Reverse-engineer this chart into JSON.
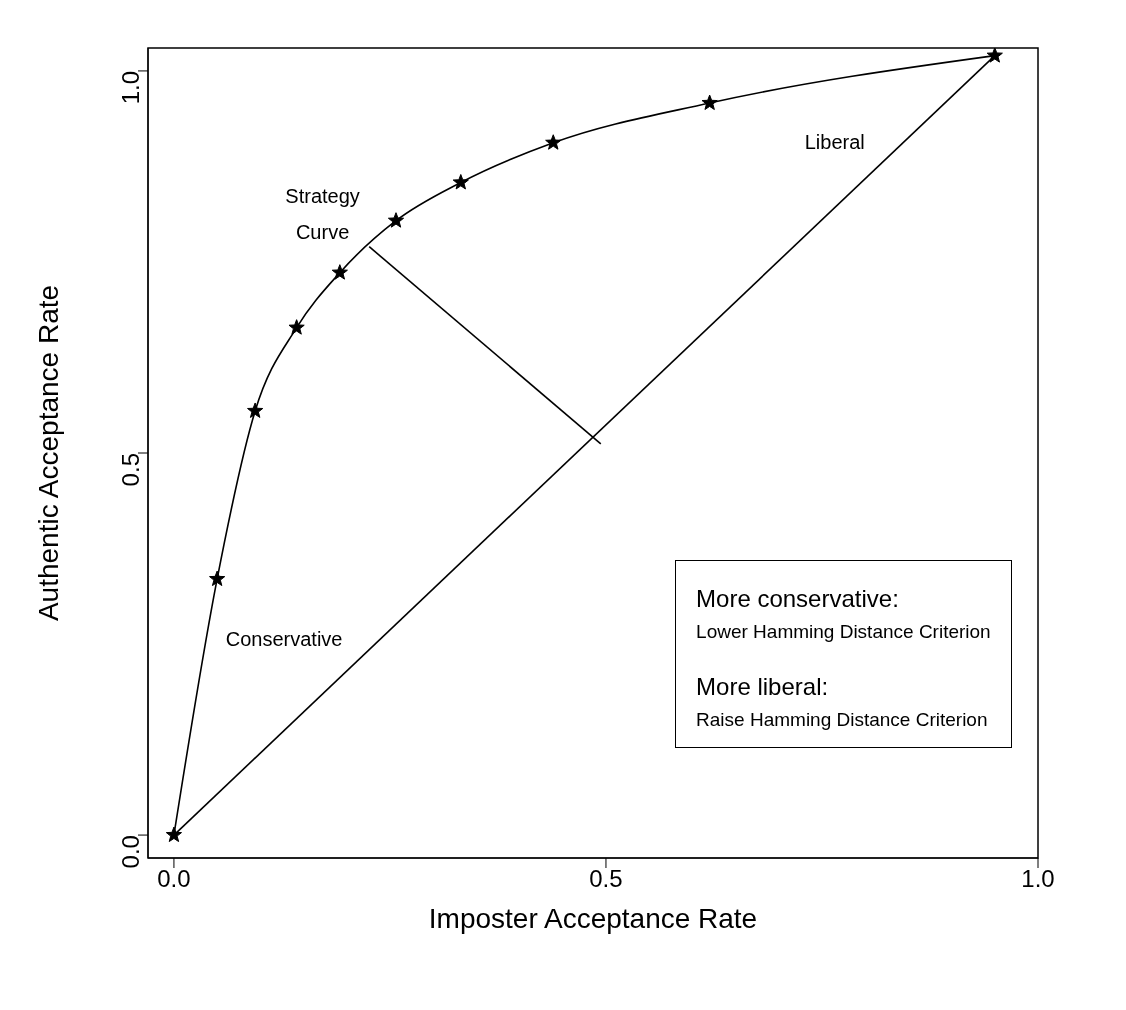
{
  "chart_data": {
    "type": "line",
    "xlabel": "Imposter Acceptance Rate",
    "ylabel": "Authentic Acceptance Rate",
    "xlim": [
      -0.03,
      1.0
    ],
    "ylim": [
      -0.03,
      1.03
    ],
    "xticks": [
      {
        "value": 0,
        "label": "0.0"
      },
      {
        "value": 0.5,
        "label": "0.5"
      },
      {
        "value": 1,
        "label": "1.0"
      }
    ],
    "yticks": [
      {
        "value": 0,
        "label": "0.0"
      },
      {
        "value": 0.5,
        "label": "0.5"
      },
      {
        "value": 1,
        "label": "1.0"
      }
    ],
    "grid": false,
    "series": [
      {
        "color": "#000000",
        "marker": "star",
        "x": [
          0,
          0.05,
          0.094,
          0.142,
          0.192,
          0.257,
          0.332,
          0.439,
          0.62,
          0.95
        ],
        "values": [
          0,
          0.335,
          0.555,
          0.664,
          0.736,
          0.804,
          0.854,
          0.906,
          0.958,
          1.02
        ]
      },
      {
        "color": "#000000",
        "marker": "none",
        "x": [
          0,
          0.95
        ],
        "values": [
          0,
          1.02
        ]
      },
      {
        "color": "#000000",
        "marker": "none",
        "x": [
          0.226,
          0.494
        ],
        "values": [
          0.77,
          0.512
        ]
      }
    ],
    "annotations": [
      "Strategy Curve",
      "Liberal",
      "Conservative",
      "More conservative:",
      "Lower Hamming Distance Criterion",
      "More liberal:",
      "Raise Hamming Distance Criterion"
    ]
  }
}
